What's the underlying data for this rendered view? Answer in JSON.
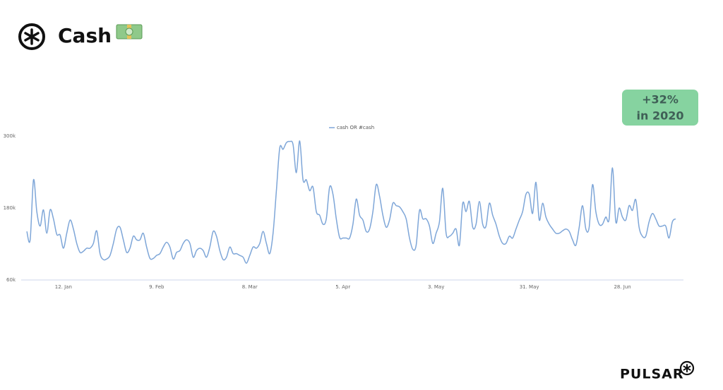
{
  "chart_data": {
    "type": "line",
    "title": "Cash",
    "annotation": {
      "value": "+32%",
      "text": "in 2020"
    },
    "brand": "PULSAR",
    "categories": [
      null,
      null,
      null,
      null,
      null,
      null,
      null,
      null,
      null,
      null,
      null,
      "12. Jan",
      null,
      null,
      null,
      null,
      null,
      null,
      null,
      null,
      null,
      null,
      null,
      null,
      null,
      null,
      null,
      null,
      null,
      null,
      null,
      null,
      null,
      null,
      null,
      null,
      null,
      null,
      null,
      "9. Feb",
      null,
      null,
      null,
      null,
      null,
      null,
      null,
      null,
      null,
      null,
      null,
      null,
      null,
      null,
      null,
      null,
      null,
      null,
      null,
      null,
      null,
      null,
      null,
      null,
      null,
      null,
      null,
      "8. Mar",
      null,
      null,
      null,
      null,
      null,
      null,
      null,
      null,
      null,
      null,
      null,
      null,
      null,
      null,
      null,
      null,
      null,
      null,
      null,
      null,
      null,
      null,
      null,
      null,
      null,
      null,
      null,
      "5. Apr",
      null,
      null,
      null,
      null,
      null,
      null,
      null,
      null,
      null,
      null,
      null,
      null,
      null,
      null,
      null,
      null,
      null,
      null,
      null,
      null,
      null,
      null,
      null,
      null,
      null,
      null,
      null,
      "3. May",
      null,
      null,
      null,
      null,
      null,
      null,
      null,
      null,
      null,
      null,
      null,
      null,
      null,
      null,
      null,
      null,
      null,
      null,
      null,
      null,
      null,
      null,
      null,
      null,
      null,
      null,
      null,
      "31. May",
      null,
      null,
      null,
      null,
      null,
      null,
      null,
      null,
      null,
      null,
      null,
      null,
      null,
      null,
      null,
      null,
      null,
      null,
      null,
      null,
      null,
      null,
      null,
      null,
      null,
      null,
      null,
      "28. Jun",
      null,
      null,
      null,
      null,
      null,
      null,
      null,
      null,
      null,
      null,
      null,
      null,
      null,
      null,
      null,
      null
    ],
    "series": [
      {
        "name": "cash OR #cash",
        "color": "#7ea6d8",
        "values": [
          141000,
          127000,
          227000,
          174000,
          150000,
          177000,
          138000,
          177000,
          162000,
          136000,
          135000,
          113000,
          138000,
          160000,
          145000,
          121000,
          106000,
          108000,
          113000,
          113000,
          121000,
          142000,
          104000,
          94000,
          95000,
          101000,
          121000,
          145000,
          148000,
          127000,
          106000,
          113000,
          133000,
          127000,
          127000,
          138000,
          115000,
          96000,
          96000,
          101000,
          104000,
          115000,
          123000,
          115000,
          95000,
          106000,
          109000,
          121000,
          127000,
          121000,
          98000,
          109000,
          113000,
          109000,
          98000,
          115000,
          141000,
          133000,
          109000,
          94000,
          98000,
          115000,
          104000,
          104000,
          101000,
          98000,
          88000,
          101000,
          115000,
          113000,
          121000,
          141000,
          121000,
          104000,
          138000,
          209000,
          280000,
          278000,
          289000,
          291000,
          286000,
          239000,
          292000,
          227000,
          227000,
          209000,
          215000,
          174000,
          168000,
          153000,
          162000,
          215000,
          203000,
          162000,
          131000,
          130000,
          130000,
          130000,
          153000,
          195000,
          168000,
          160000,
          141000,
          145000,
          174000,
          219000,
          200000,
          168000,
          148000,
          160000,
          188000,
          184000,
          182000,
          174000,
          162000,
          130000,
          111000,
          118000,
          176000,
          162000,
          162000,
          150000,
          121000,
          138000,
          157000,
          213000,
          138000,
          133000,
          138000,
          145000,
          118000,
          188000,
          174000,
          191000,
          148000,
          153000,
          191000,
          153000,
          150000,
          188000,
          168000,
          153000,
          133000,
          121000,
          121000,
          133000,
          130000,
          145000,
          160000,
          174000,
          203000,
          203000,
          171000,
          223000,
          160000,
          188000,
          165000,
          153000,
          145000,
          138000,
          138000,
          142000,
          145000,
          141000,
          127000,
          118000,
          148000,
          184000,
          145000,
          148000,
          219000,
          174000,
          153000,
          153000,
          165000,
          162000,
          247000,
          157000,
          180000,
          165000,
          160000,
          184000,
          176000,
          194000,
          148000,
          133000,
          133000,
          157000,
          171000,
          162000,
          150000,
          150000,
          150000,
          130000,
          157000,
          162000
        ]
      }
    ],
    "ylim": [
      60000,
      300000
    ],
    "yticks": [
      {
        "value": 60000,
        "label": "60k"
      },
      {
        "value": 180000,
        "label": "180k"
      },
      {
        "value": 300000,
        "label": "300k"
      }
    ],
    "grid": false,
    "legend": "top"
  }
}
